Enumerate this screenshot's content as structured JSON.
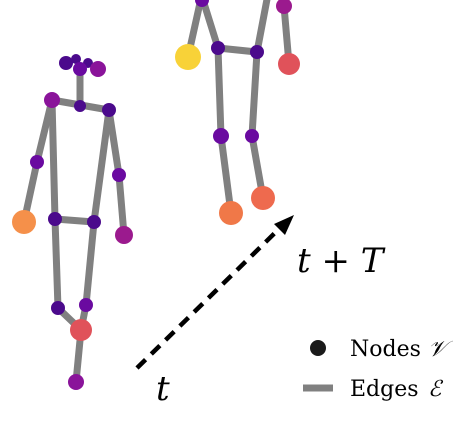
{
  "labels": {
    "time_start": "t",
    "time_end": "t + T"
  },
  "legend": {
    "nodes_label": "Nodes",
    "nodes_symbol": "𝒱",
    "edges_label": "Edges",
    "edges_symbol": "ℰ"
  },
  "colors": {
    "edge": "#808080",
    "arrow": "#000000",
    "node_dark_purple": "#4b0a8c",
    "node_purple": "#7a0aa0",
    "node_magenta": "#9b1a8e",
    "node_red": "#e0525a",
    "node_orange": "#f07848",
    "node_light_orange": "#f5904a",
    "node_yellow": "#f8d238"
  }
}
